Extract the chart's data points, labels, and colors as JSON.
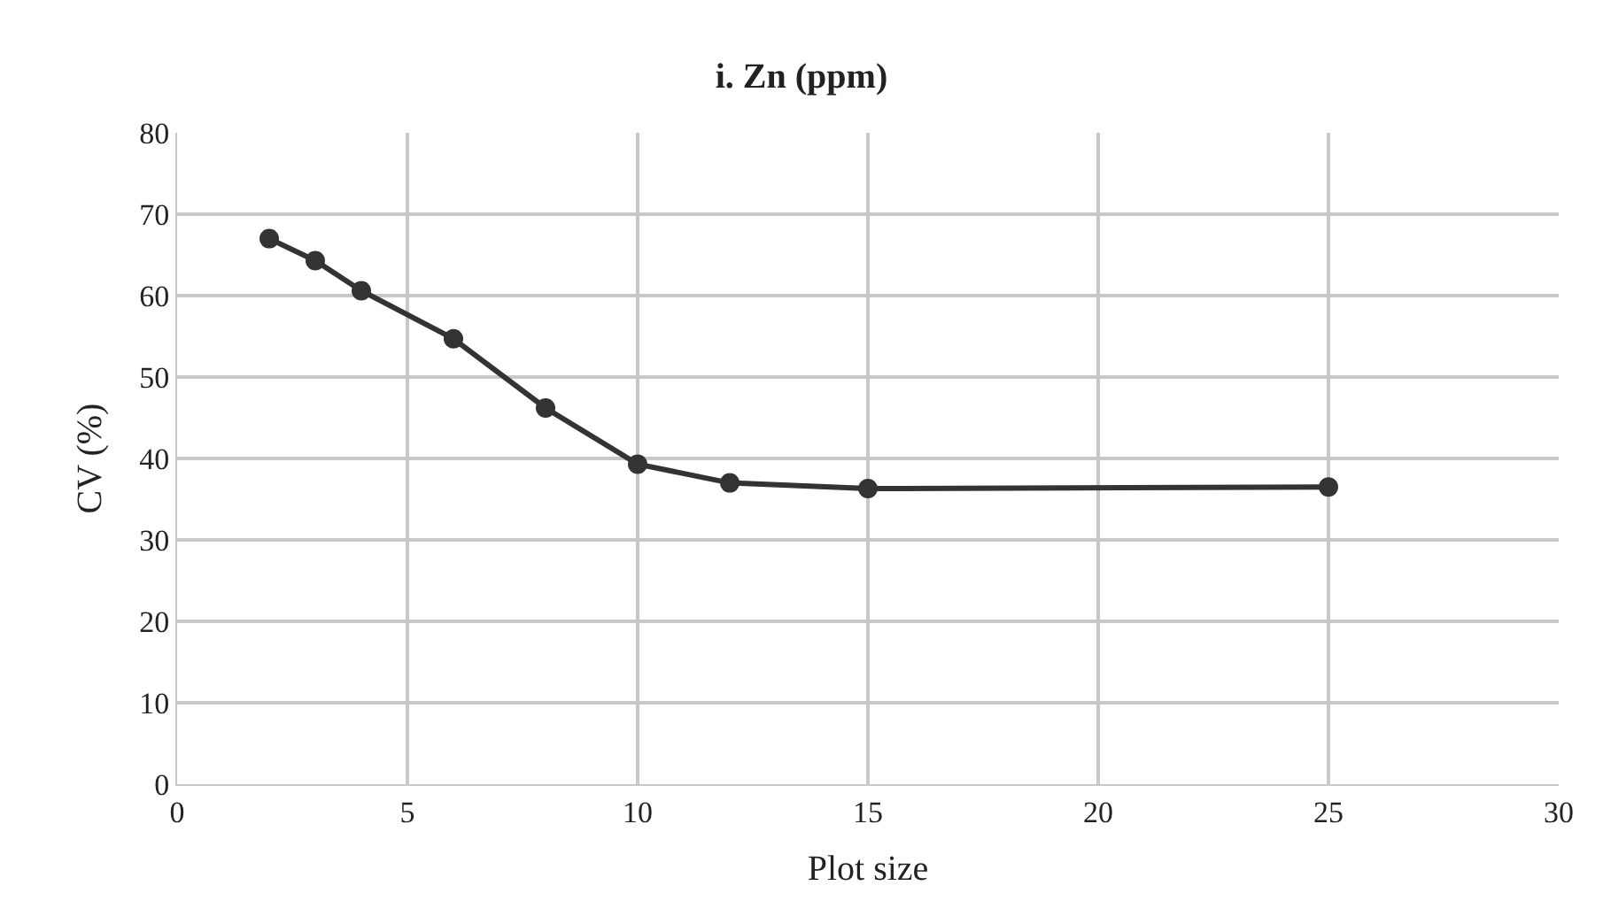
{
  "chart_data": {
    "type": "line",
    "title": "i. Zn (ppm)",
    "xlabel": "Plot size",
    "ylabel": "CV (%)",
    "x": [
      2,
      3,
      4,
      6,
      8,
      10,
      12,
      15,
      25
    ],
    "series": [
      {
        "color": "#333333",
        "values": [
          67,
          64.3,
          60.6,
          54.7,
          46.2,
          39.3,
          37,
          36.3,
          36.5
        ]
      }
    ],
    "xlim": [
      0,
      30
    ],
    "xticks": [
      0,
      5,
      10,
      15,
      20,
      25,
      30
    ],
    "ylim": [
      0,
      80
    ],
    "yticks": [
      0,
      10,
      20,
      30,
      40,
      50,
      60,
      70,
      80
    ],
    "grid": true,
    "marker": "circle",
    "line_style": "solid"
  }
}
